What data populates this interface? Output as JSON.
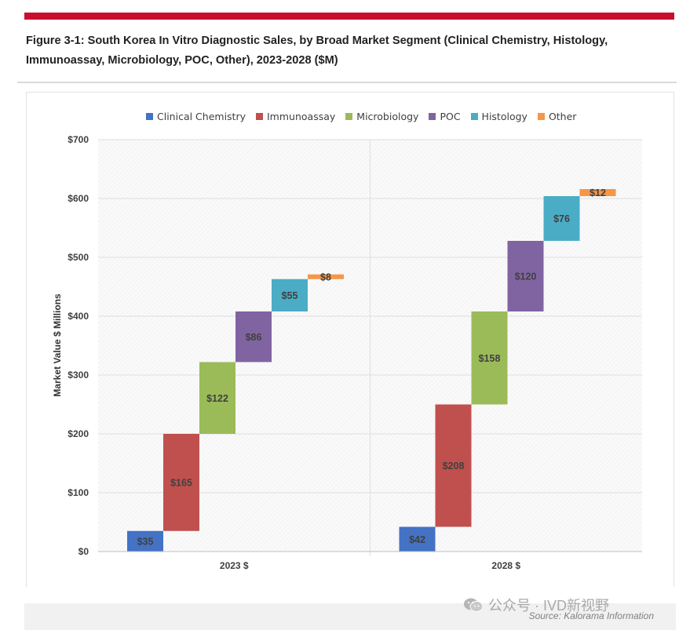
{
  "figure": {
    "title": "Figure 3-1: South Korea In Vitro Diagnostic Sales, by Broad Market Segment (Clinical Chemistry, Histology, Immunoassay, Microbiology, POC, Other), 2023-2028 ($M)"
  },
  "colors": {
    "accent_bar": "#c8102e",
    "Clinical Chemistry": "#4472c4",
    "Immunoassay": "#c0504d",
    "Microbiology": "#9bbb59",
    "POC": "#8064a2",
    "Histology": "#4bacc6",
    "Other": "#f79646"
  },
  "chart_data": {
    "type": "bar",
    "subtype": "waterfall",
    "title": "",
    "ylabel": "Market Value $ Millions",
    "xlabel": "",
    "ylim": [
      0,
      700
    ],
    "y_ticks": [
      "$0",
      "$100",
      "$200",
      "$300",
      "$400",
      "$500",
      "$600",
      "$700"
    ],
    "grid": true,
    "legend_position": "top",
    "legend": [
      "Clinical Chemistry",
      "Immunoassay",
      "Microbiology",
      "POC",
      "Histology",
      "Other"
    ],
    "categories": [
      "2023 $",
      "2028 $"
    ],
    "series": [
      {
        "name": "Clinical Chemistry",
        "values": [
          35,
          42
        ],
        "labels": [
          "$35",
          "$42"
        ]
      },
      {
        "name": "Immunoassay",
        "values": [
          165,
          208
        ],
        "labels": [
          "$165",
          "$208"
        ]
      },
      {
        "name": "Microbiology",
        "values": [
          122,
          158
        ],
        "labels": [
          "$122",
          "$158"
        ]
      },
      {
        "name": "POC",
        "values": [
          86,
          120
        ],
        "labels": [
          "$86",
          "$120"
        ]
      },
      {
        "name": "Histology",
        "values": [
          55,
          76
        ],
        "labels": [
          "$55",
          "$76"
        ]
      },
      {
        "name": "Other",
        "values": [
          8,
          12
        ],
        "labels": [
          "$8",
          "$12"
        ]
      }
    ]
  },
  "footer": {
    "source": "Source: Kalorama Information",
    "watermark": "公众号 · IVD新视野",
    "watermark_icon": "wechat-icon"
  }
}
